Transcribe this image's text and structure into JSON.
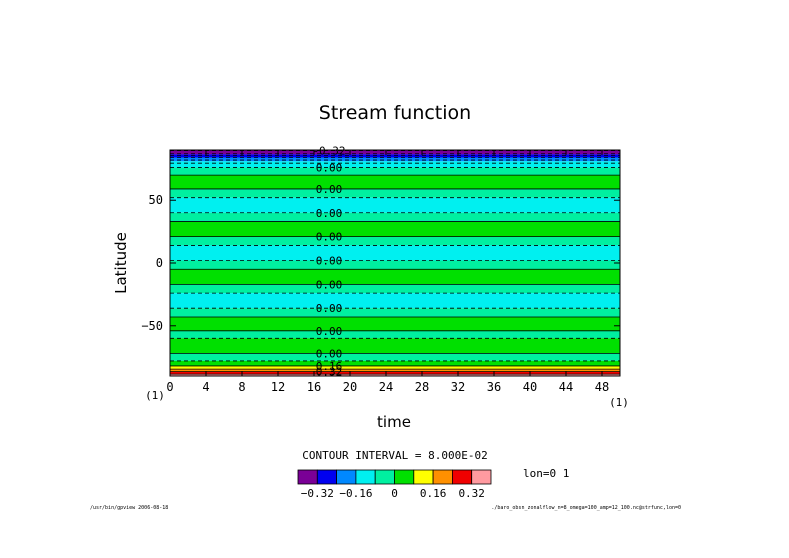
{
  "chart_data": {
    "type": "contour",
    "title": "Stream function",
    "xlabel": "time",
    "ylabel": "Latitude",
    "x_unit": "(1)",
    "y_unit": "(1)",
    "xlim": [
      0,
      50
    ],
    "ylim": [
      -90,
      90
    ],
    "x_ticks": [
      0,
      4,
      8,
      12,
      16,
      20,
      24,
      28,
      32,
      36,
      40,
      44,
      48
    ],
    "y_ticks": [
      50,
      0,
      -50
    ],
    "y_tick_labels": [
      "50",
      "0",
      "−50"
    ],
    "contour_interval_label": "CONTOUR INTERVAL = 8.000E-02",
    "bands": [
      {
        "lat_bottom": 86.5,
        "lat_top": 90,
        "value": -0.36
      },
      {
        "lat_bottom": 84,
        "lat_top": 86.5,
        "value": -0.28
      },
      {
        "lat_bottom": 81,
        "lat_top": 84,
        "value": -0.2
      },
      {
        "lat_bottom": 76,
        "lat_top": 81,
        "value": -0.12
      },
      {
        "lat_bottom": 70,
        "lat_top": 76,
        "value": -0.04
      },
      {
        "lat_bottom": 59,
        "lat_top": 70,
        "value": 0.04
      },
      {
        "lat_bottom": 52,
        "lat_top": 59,
        "value": -0.04
      },
      {
        "lat_bottom": 40,
        "lat_top": 52,
        "value": -0.12
      },
      {
        "lat_bottom": 33,
        "lat_top": 40,
        "value": -0.04
      },
      {
        "lat_bottom": 21,
        "lat_top": 33,
        "value": 0.04
      },
      {
        "lat_bottom": 14,
        "lat_top": 21,
        "value": -0.04
      },
      {
        "lat_bottom": 2,
        "lat_top": 14,
        "value": -0.12
      },
      {
        "lat_bottom": -5,
        "lat_top": 2,
        "value": -0.04
      },
      {
        "lat_bottom": -17,
        "lat_top": -5,
        "value": 0.04
      },
      {
        "lat_bottom": -24,
        "lat_top": -17,
        "value": -0.04
      },
      {
        "lat_bottom": -36,
        "lat_top": -24,
        "value": -0.12
      },
      {
        "lat_bottom": -43,
        "lat_top": -36,
        "value": -0.04
      },
      {
        "lat_bottom": -54,
        "lat_top": -43,
        "value": 0.04
      },
      {
        "lat_bottom": -60,
        "lat_top": -54,
        "value": -0.04
      },
      {
        "lat_bottom": -72,
        "lat_top": -60,
        "value": 0.04
      },
      {
        "lat_bottom": -78,
        "lat_top": -72,
        "value": -0.04
      },
      {
        "lat_bottom": -82,
        "lat_top": -78,
        "value": 0.04
      },
      {
        "lat_bottom": -84.5,
        "lat_top": -82,
        "value": 0.12
      },
      {
        "lat_bottom": -86.5,
        "lat_top": -84.5,
        "value": 0.2
      },
      {
        "lat_bottom": -88.5,
        "lat_top": -86.5,
        "value": 0.28
      },
      {
        "lat_bottom": -90,
        "lat_top": -88.5,
        "value": 0.36
      }
    ],
    "contour_lines": [
      {
        "lat": 89.5,
        "dashed": true,
        "label": "-0.32"
      },
      {
        "lat": 87,
        "dashed": true,
        "label": null
      },
      {
        "lat": 85.5,
        "dashed": true,
        "label": null
      },
      {
        "lat": 84,
        "dashed": true,
        "label": null
      },
      {
        "lat": 82,
        "dashed": true,
        "label": null
      },
      {
        "lat": 79.5,
        "dashed": true,
        "label": null
      },
      {
        "lat": 76,
        "dashed": true,
        "label": "0.00"
      },
      {
        "lat": 70,
        "dashed": false,
        "label": null
      },
      {
        "lat": 59,
        "dashed": false,
        "label": "0.00"
      },
      {
        "lat": 52,
        "dashed": true,
        "label": null
      },
      {
        "lat": 40,
        "dashed": true,
        "label": "0.00"
      },
      {
        "lat": 33,
        "dashed": false,
        "label": null
      },
      {
        "lat": 21,
        "dashed": false,
        "label": "0.00"
      },
      {
        "lat": 14,
        "dashed": true,
        "label": null
      },
      {
        "lat": 2,
        "dashed": true,
        "label": "0.00"
      },
      {
        "lat": -5,
        "dashed": false,
        "label": null
      },
      {
        "lat": -17,
        "dashed": false,
        "label": "0.00"
      },
      {
        "lat": -24,
        "dashed": true,
        "label": null
      },
      {
        "lat": -36,
        "dashed": true,
        "label": "0.00"
      },
      {
        "lat": -43,
        "dashed": false,
        "label": null
      },
      {
        "lat": -54,
        "dashed": false,
        "label": "0.00"
      },
      {
        "lat": -60,
        "dashed": true,
        "label": null
      },
      {
        "lat": -72,
        "dashed": false,
        "label": "0.00"
      },
      {
        "lat": -78,
        "dashed": true,
        "label": null
      },
      {
        "lat": -82,
        "dashed": false,
        "label": "0.16"
      },
      {
        "lat": -84.5,
        "dashed": false,
        "label": null
      },
      {
        "lat": -86.5,
        "dashed": false,
        "label": "0.32"
      },
      {
        "lat": -88.5,
        "dashed": false,
        "label": null
      }
    ],
    "colorbar": {
      "bins": [
        {
          "color": "#7a0096"
        },
        {
          "color": "#0000f0"
        },
        {
          "color": "#0088ff"
        },
        {
          "color": "#00f0f0"
        },
        {
          "color": "#00f0a0"
        },
        {
          "color": "#00e000"
        },
        {
          "color": "#ffff00"
        },
        {
          "color": "#ff9000"
        },
        {
          "color": "#f00000"
        },
        {
          "color": "#ff9aa0"
        }
      ],
      "boundaries": [
        -0.4,
        -0.32,
        -0.24,
        -0.16,
        -0.08,
        0,
        0.08,
        0.16,
        0.24,
        0.32,
        0.4
      ],
      "tick_labels": [
        {
          "at": -0.32,
          "text": "−0.32"
        },
        {
          "at": -0.16,
          "text": "−0.16"
        },
        {
          "at": 0,
          "text": "0"
        },
        {
          "at": 0.16,
          "text": "0.16"
        },
        {
          "at": 0.32,
          "text": "0.32"
        }
      ]
    },
    "annotation": "lon=0 1",
    "footer_left": "/usr/bin/gpview  2006-08-18",
    "footer_right": "./baro_obsn_zonalflow_n=8_omega=100_amp=12_100.nc@strfunc,lon=0"
  }
}
